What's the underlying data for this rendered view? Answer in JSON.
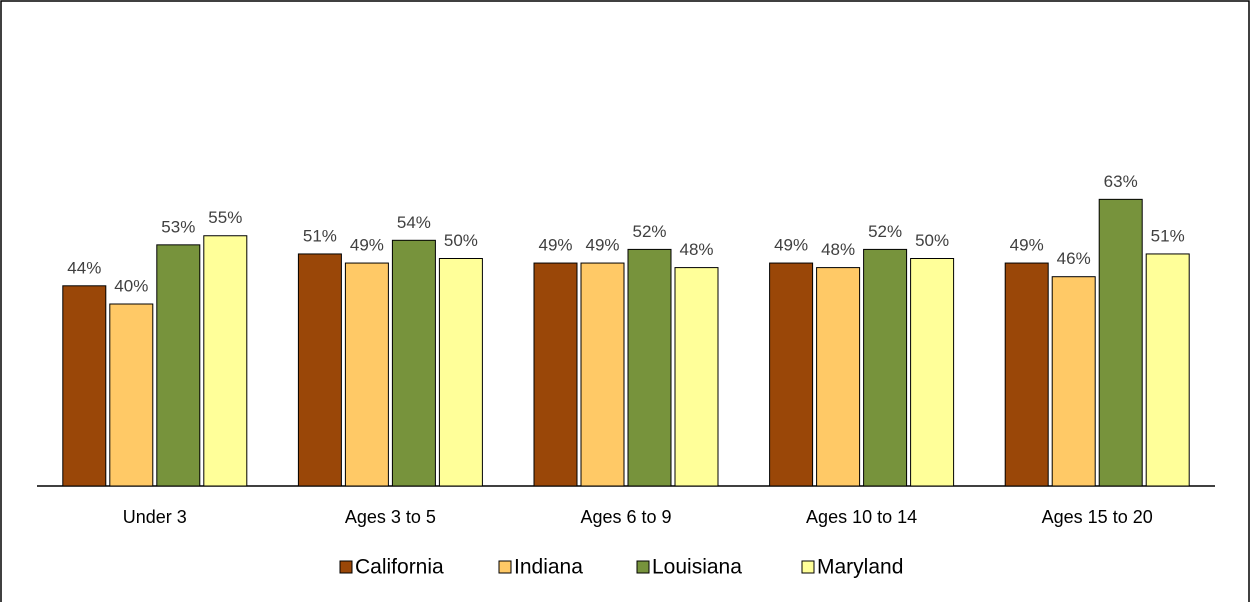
{
  "chart_data": {
    "type": "bar",
    "categories": [
      "Under 3",
      "Ages 3 to 5",
      "Ages 6 to 9",
      "Ages 10 to 14",
      "Ages 15 to 20"
    ],
    "series": [
      {
        "name": "California",
        "color": "#9a4708",
        "values": [
          44,
          51,
          49,
          49,
          49
        ],
        "value_labels": [
          "44%",
          "51%",
          "49%",
          "49%",
          "49%"
        ]
      },
      {
        "name": "Indiana",
        "color": "#ffc966",
        "values": [
          40,
          49,
          49,
          48,
          46
        ],
        "value_labels": [
          "40%",
          "49%",
          "49%",
          "48%",
          "46%"
        ]
      },
      {
        "name": "Louisiana",
        "color": "#77933c",
        "values": [
          53,
          54,
          52,
          52,
          63
        ],
        "value_labels": [
          "53%",
          "54%",
          "52%",
          "52%",
          "63%"
        ]
      },
      {
        "name": "Maryland",
        "color": "#ffff99",
        "values": [
          55,
          50,
          48,
          50,
          51
        ],
        "value_labels": [
          "55%",
          "50%",
          "48%",
          "50%",
          "51%"
        ]
      }
    ],
    "legend": "bottom"
  }
}
